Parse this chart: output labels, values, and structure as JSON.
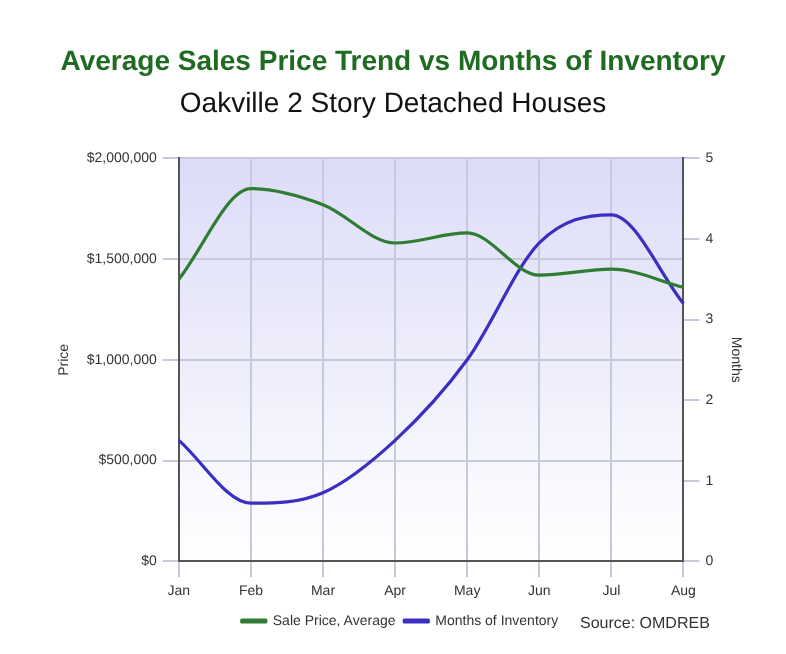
{
  "chart_data": {
    "type": "line",
    "title": "Average Sales Price Trend vs Months of Inventory",
    "subtitle": "Oakville 2 Story Detached Houses",
    "ylabel": "Price",
    "y2label": "Months",
    "categories": [
      "Jan",
      "Feb",
      "Mar",
      "Apr",
      "May",
      "Jun",
      "Jul",
      "Aug"
    ],
    "series": [
      {
        "name": "Sale Price, Average",
        "color": "#2e7d32",
        "values": [
          1400000,
          1850000,
          1770000,
          1580000,
          1630000,
          1420000,
          1450000,
          1360000
        ]
      },
      {
        "name": "Months of Inventory",
        "color": "#3a2fc0",
        "axis": "y2",
        "values": [
          1.5,
          0.72,
          0.85,
          1.5,
          2.5,
          3.95,
          4.3,
          3.2
        ]
      }
    ],
    "ylim": [
      0,
      2000000
    ],
    "yticks": [
      {
        "value": 0,
        "label": "$0"
      },
      {
        "value": 500000,
        "label": "$500,000"
      },
      {
        "value": 1000000,
        "label": "$1,000,000"
      },
      {
        "value": 1500000,
        "label": "$1,500,000"
      },
      {
        "value": 2000000,
        "label": "$2,000,000"
      }
    ],
    "y2lim": [
      0,
      5
    ],
    "y2ticks": [
      0,
      1,
      2,
      3,
      4,
      5
    ],
    "grid": true,
    "legend": "bottom",
    "marker": "none",
    "line_style": "solid",
    "annotations": [
      "Source: OMDREB"
    ]
  }
}
